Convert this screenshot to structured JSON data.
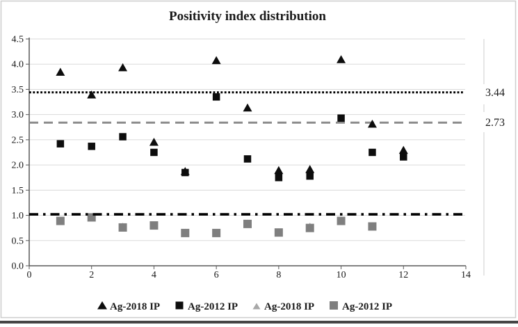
{
  "chart_data": {
    "type": "scatter",
    "title": "Positivity index distribution",
    "xlabel": "",
    "ylabel": "",
    "xlim": [
      0,
      14
    ],
    "ylim": [
      0,
      4.5
    ],
    "x_ticks": [
      "0",
      "2",
      "4",
      "6",
      "8",
      "10",
      "12",
      "14"
    ],
    "y_ticks": [
      "0.0",
      "0.5",
      "1.0",
      "1.5",
      "2.0",
      "2.5",
      "3.0",
      "3.5",
      "4.0",
      "4.5"
    ],
    "grid": "horizontal",
    "legend_position": "bottom",
    "series": [
      {
        "name": "Ag-2018 IP",
        "marker": "triangle",
        "color": "#0d0d0d",
        "x": [
          1,
          2,
          3,
          4,
          5,
          6,
          7,
          8,
          9,
          10,
          11,
          12
        ],
        "y": [
          3.85,
          3.4,
          3.94,
          2.46,
          1.88,
          4.08,
          3.14,
          1.9,
          1.92,
          4.1,
          2.82,
          2.3
        ]
      },
      {
        "name": "Ag-2012 IP",
        "marker": "square",
        "color": "#0d0d0d",
        "x": [
          1,
          2,
          3,
          4,
          5,
          6,
          7,
          8,
          9,
          10,
          11,
          12
        ],
        "y": [
          2.42,
          2.37,
          2.56,
          2.25,
          1.85,
          3.35,
          2.12,
          1.75,
          1.78,
          2.93,
          2.25,
          2.16
        ]
      },
      {
        "name": "Ag-2018 IP",
        "marker": "triangle",
        "color": "#a8a8a8",
        "x": [
          1,
          2,
          3,
          4,
          5,
          6,
          7,
          8,
          9,
          10,
          11
        ],
        "y": [
          0.91,
          0.98,
          0.79,
          0.82,
          0.67,
          0.67,
          0.85,
          0.68,
          0.79,
          0.91,
          0.8
        ]
      },
      {
        "name": "Ag-2012 IP",
        "marker": "square",
        "color": "#7f7f7f",
        "x": [
          1,
          2,
          3,
          4,
          5,
          6,
          7,
          8,
          9,
          10,
          11
        ],
        "y": [
          0.89,
          0.96,
          0.76,
          0.8,
          0.65,
          0.65,
          0.83,
          0.66,
          0.75,
          0.89,
          0.78
        ]
      }
    ],
    "ref_lines": [
      {
        "label": "3.44",
        "value": 3.44,
        "style": "dotted",
        "color": "#000000"
      },
      {
        "label": "2.73",
        "value": 2.73,
        "style": "dashed",
        "color": "#8c8c8c"
      },
      {
        "label": "",
        "value": 1.02,
        "style": "dashdot",
        "color": "#000000"
      }
    ],
    "colors": {
      "grid": "#dadada",
      "axis": "#595959",
      "frame": "#cdcdcd"
    }
  }
}
